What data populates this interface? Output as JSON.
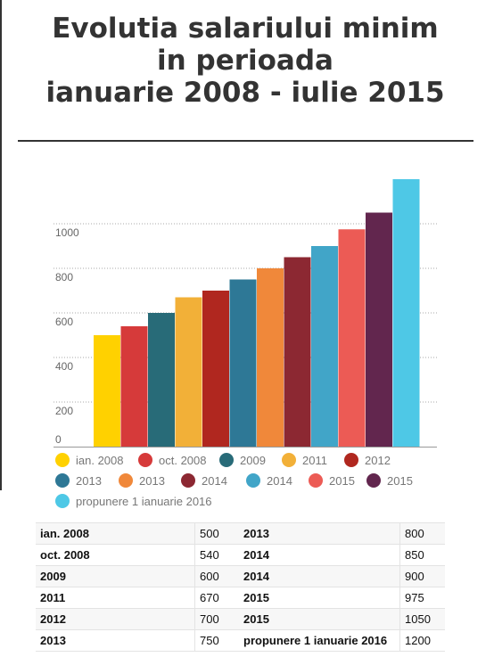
{
  "title": {
    "line1": "Evolutia salariului minim",
    "line2": "in perioada",
    "line3": "ianuarie 2008 - iulie 2015"
  },
  "chart_data": {
    "type": "bar",
    "categories": [
      "ian. 2008",
      "oct. 2008",
      "2009",
      "2011",
      "2012",
      "2013",
      "2013",
      "2014",
      "2014",
      "2015",
      "2015",
      "propunere 1 ianuarie 2016"
    ],
    "values": [
      500,
      540,
      600,
      670,
      700,
      750,
      800,
      850,
      900,
      975,
      1050,
      1200
    ],
    "colors": [
      "#ffd100",
      "#d63a3a",
      "#286b78",
      "#f2b038",
      "#b0271f",
      "#2e7896",
      "#f0883a",
      "#8c2832",
      "#41a5c8",
      "#ec5b55",
      "#62264e",
      "#4ec8e6"
    ],
    "y_ticks": [
      0,
      200,
      400,
      600,
      800,
      1000
    ],
    "y_tick_labels": [
      "0",
      "200",
      "400",
      "600",
      "800",
      "1000"
    ],
    "ylim": [
      0,
      1200
    ],
    "grid": true,
    "grid_style": "dotted",
    "legend_position": "bottom"
  },
  "table": {
    "left": [
      {
        "label": "ian. 2008",
        "value": "500"
      },
      {
        "label": "oct. 2008",
        "value": "540"
      },
      {
        "label": "2009",
        "value": "600"
      },
      {
        "label": "2011",
        "value": "670"
      },
      {
        "label": "2012",
        "value": "700"
      },
      {
        "label": "2013",
        "value": "750"
      }
    ],
    "right": [
      {
        "label": "2013",
        "value": "800"
      },
      {
        "label": "2014",
        "value": "850"
      },
      {
        "label": "2014",
        "value": "900"
      },
      {
        "label": "2015",
        "value": "975"
      },
      {
        "label": "2015",
        "value": "1050"
      },
      {
        "label": "propunere 1 ianuarie 2016",
        "value": "1200"
      }
    ]
  }
}
